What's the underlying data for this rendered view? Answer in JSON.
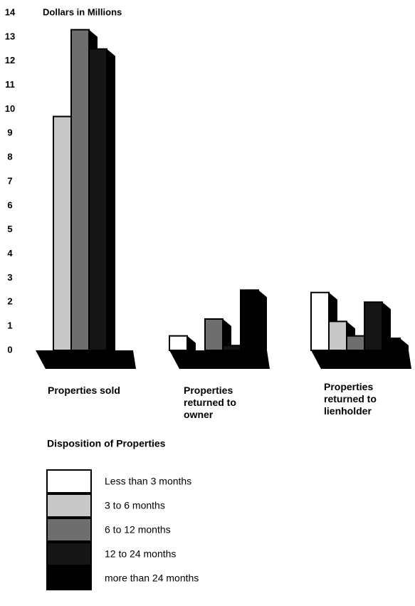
{
  "chart_data": {
    "type": "bar3d",
    "title": "Dollars in Millions",
    "x_label": "Disposition of Properties",
    "categories": [
      "Properties sold",
      "Properties returned to owner",
      "Properties returned to lienholder"
    ],
    "series": [
      {
        "name": "Less than 3 months",
        "color": "#ffffff",
        "values": [
          0,
          0.6,
          2.4
        ]
      },
      {
        "name": "3 to 6 months",
        "color": "#c8c8c8",
        "values": [
          9.7,
          0,
          1.2
        ]
      },
      {
        "name": "6 to 12 months",
        "color": "#6e6e6e",
        "values": [
          13.3,
          1.3,
          0.6
        ]
      },
      {
        "name": "12 to 24 months",
        "color": "#151515",
        "values": [
          12.5,
          0.2,
          2.0
        ]
      },
      {
        "name": "more than 24 months",
        "color": "#000000",
        "values": [
          0,
          2.5,
          0.5
        ]
      }
    ],
    "ylim": [
      0,
      14
    ],
    "yticks": [
      0,
      1,
      2,
      3,
      4,
      5,
      6,
      7,
      8,
      9,
      10,
      11,
      12,
      13,
      14
    ]
  }
}
